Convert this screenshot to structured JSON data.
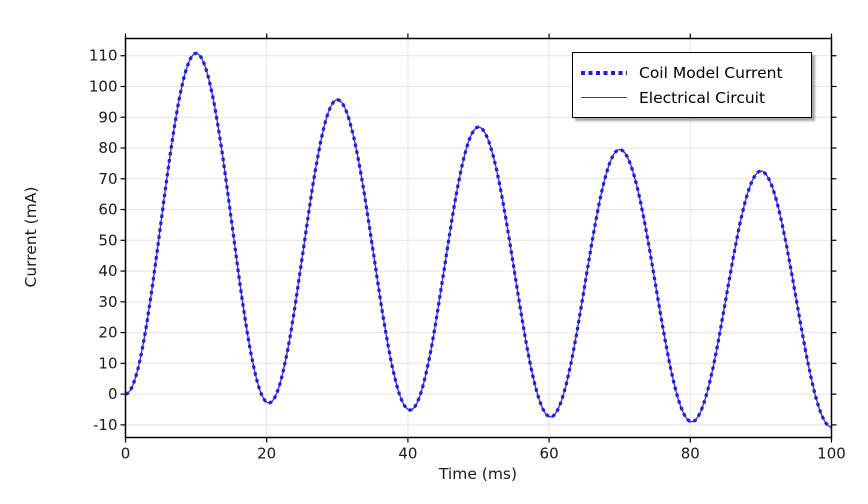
{
  "window": {
    "background": "#ffffff"
  },
  "chart_data": {
    "type": "line",
    "title": "",
    "xlabel": "Time (ms)",
    "ylabel": "Current (mA)",
    "xlim": [
      0,
      100
    ],
    "ylim": [
      -14.1,
      115.6
    ],
    "xticks": [
      0,
      20,
      40,
      60,
      80,
      100
    ],
    "yticks": [
      -10,
      0,
      10,
      20,
      30,
      40,
      50,
      60,
      70,
      80,
      90,
      100,
      110
    ],
    "grid": true,
    "legend": {
      "position": "top-right",
      "items": [
        {
          "label": "Coil Model Current",
          "style": "dotted"
        },
        {
          "label": "Electrical Circuit",
          "style": "solid"
        }
      ]
    },
    "colors": {
      "dotted_series": "#1e1ee0",
      "solid_series": "#3232c8",
      "grid": "#e4e4e4",
      "axis": "#000000",
      "text": "#1a1a1a"
    },
    "series": [
      {
        "name": "Coil Model Current",
        "line_style": "dotted",
        "color": "#1e1ee0",
        "line_width": 3.2,
        "interpolation": "cosine",
        "points_t": [
          0,
          10,
          20.3,
          30,
          40.3,
          50,
          60.2,
          70,
          80.2,
          90,
          100
        ],
        "points_i": [
          0,
          110.8,
          -2.9,
          95.7,
          -5.2,
          86.8,
          -7.4,
          79.5,
          -9.0,
          72.5,
          -10.7
        ]
      },
      {
        "name": "Electrical Circuit",
        "line_style": "solid",
        "color": "#3232c8",
        "line_width": 1.3,
        "interpolation": "cosine",
        "points_t": [
          0,
          10,
          20.3,
          30,
          40.3,
          50,
          60.2,
          70,
          80.2,
          90,
          100
        ],
        "points_i": [
          0,
          110.8,
          -2.9,
          95.7,
          -5.2,
          86.8,
          -7.4,
          79.5,
          -9.0,
          72.5,
          -10.7
        ]
      }
    ]
  }
}
